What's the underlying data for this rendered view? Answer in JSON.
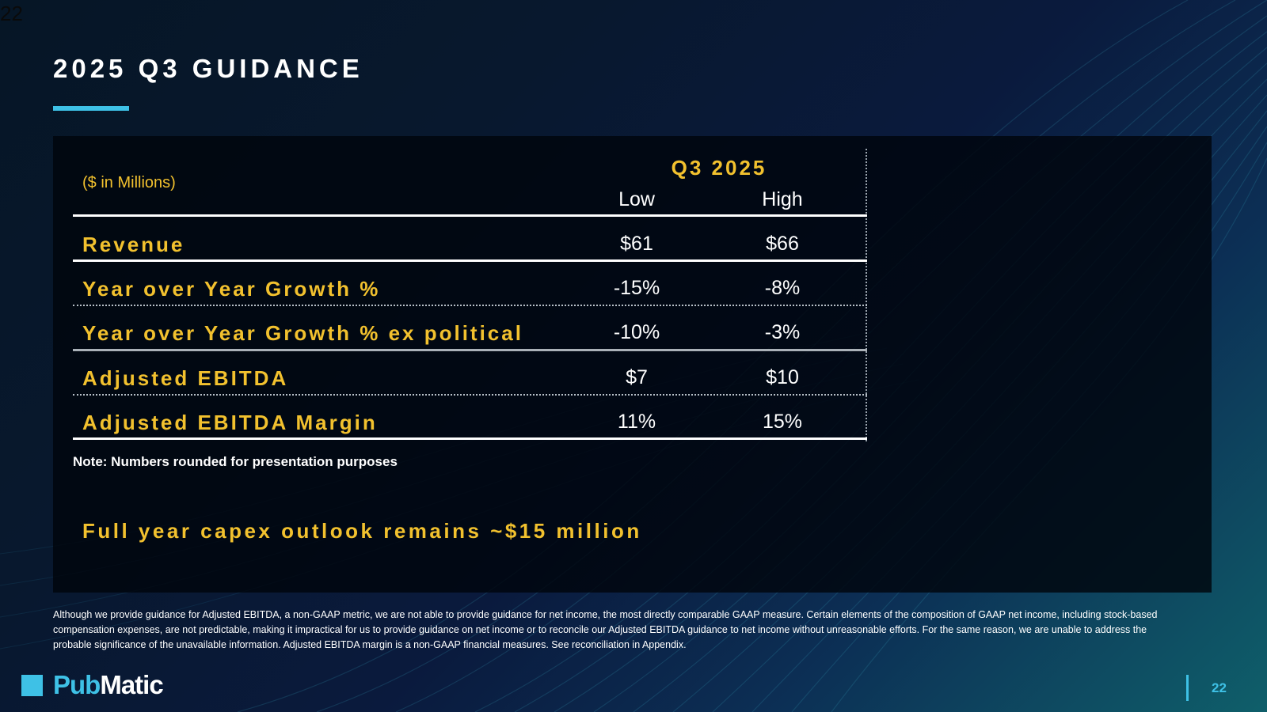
{
  "corner_number": "22",
  "title": "2025 Q3 GUIDANCE",
  "table": {
    "units": "($ in Millions)",
    "period": "Q3 2025",
    "col_low": "Low",
    "col_high": "High",
    "rows": [
      {
        "label": "Revenue",
        "low": "$61",
        "high": "$66"
      },
      {
        "label": "Year over Year Growth %",
        "low": "-15%",
        "high": "-8%"
      },
      {
        "label": "Year over Year Growth % ex political",
        "low": "-10%",
        "high": "-3%"
      },
      {
        "label": "Adjusted EBITDA",
        "low": "$7",
        "high": "$10"
      },
      {
        "label": "Adjusted EBITDA Margin",
        "low": "11%",
        "high": "15%"
      }
    ]
  },
  "note": "Note: Numbers rounded for presentation purposes",
  "capex": "Full year capex outlook remains ~$15 million",
  "footnote": "Although we provide guidance for Adjusted EBITDA, a non-GAAP metric, we are not able to provide guidance for net income, the most directly comparable GAAP measure. Certain elements of the composition of GAAP net income, including stock-based compensation expenses, are not predictable, making it impractical for us to provide guidance on net income or to reconcile our Adjusted EBITDA guidance to net income without unreasonable efforts. For the same reason, we are unable to address the probable significance of the unavailable information.  Adjusted EBITDA margin is a non-GAAP financial measures. See reconciliation in Appendix.",
  "logo": {
    "part1": "Pub",
    "part2": "Matic"
  },
  "page_number": "22",
  "colors": {
    "accent_yellow": "#f2c12e",
    "accent_cyan": "#3ec1e6"
  }
}
